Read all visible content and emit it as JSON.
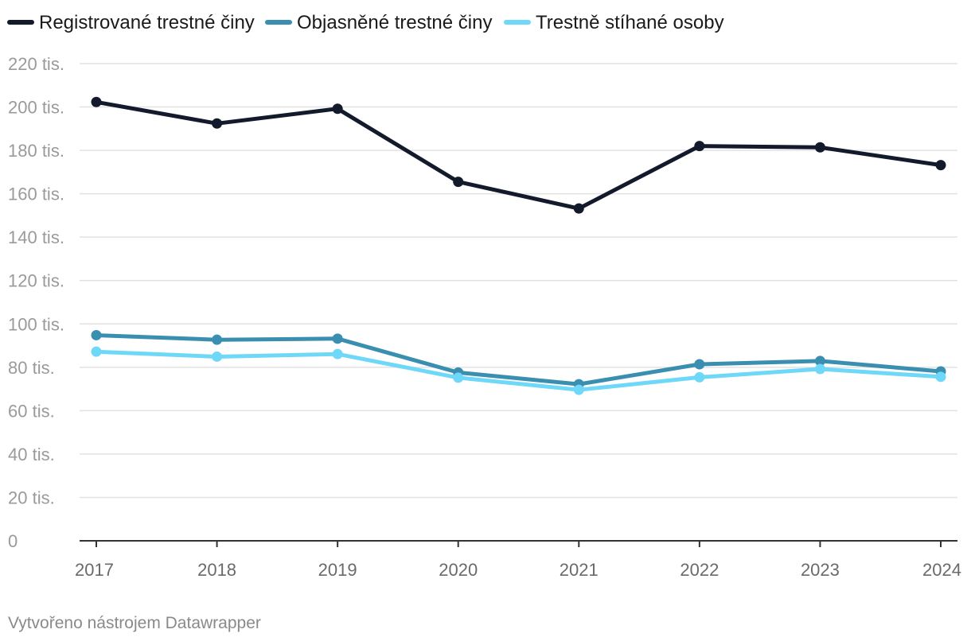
{
  "chart_data": {
    "type": "line",
    "title": "",
    "xlabel": "",
    "ylabel": "",
    "x": [
      "2017",
      "2018",
      "2019",
      "2020",
      "2021",
      "2022",
      "2023",
      "2024"
    ],
    "ylim": [
      0,
      220000
    ],
    "y_ticks": [
      0,
      20000,
      40000,
      60000,
      80000,
      100000,
      120000,
      140000,
      160000,
      180000,
      200000,
      220000
    ],
    "y_tick_labels": [
      "0",
      "20 tis.",
      "40 tis.",
      "60 tis.",
      "80 tis.",
      "100 tis.",
      "120 tis.",
      "140 tis.",
      "160 tis.",
      "180 tis.",
      "200 tis.",
      "220 tis."
    ],
    "grid": true,
    "legend_position": "top-left",
    "series": [
      {
        "name": "Registrované trestné činy",
        "color": "#131a2b",
        "values": [
          202300,
          192400,
          199200,
          165500,
          153200,
          182000,
          181400,
          173200
        ]
      },
      {
        "name": "Objasněné trestné činy",
        "color": "#3a8fb0",
        "values": [
          94800,
          92700,
          93200,
          77600,
          72200,
          81400,
          82900,
          78100
        ]
      },
      {
        "name": "Trestně stíhané osoby",
        "color": "#6fd8f8",
        "values": [
          87200,
          84900,
          86100,
          75200,
          69600,
          75400,
          79200,
          75600
        ]
      }
    ]
  },
  "footer": {
    "credit": "Vytvořeno nástrojem Datawrapper"
  }
}
